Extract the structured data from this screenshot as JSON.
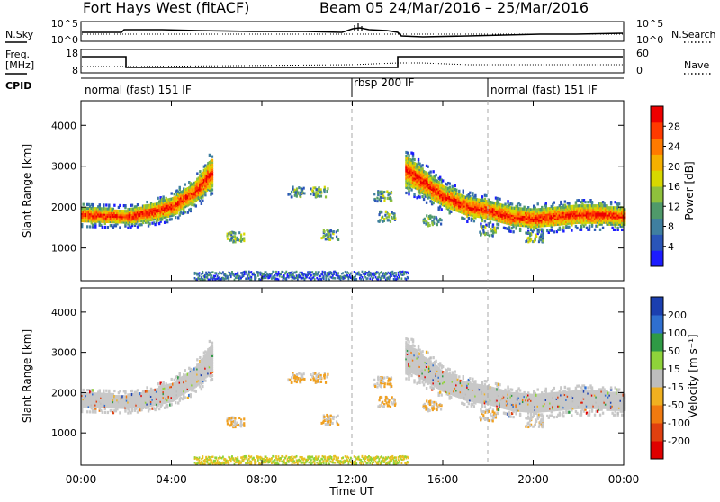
{
  "header": {
    "station": "Fort Hays West (fitACF)",
    "beam_dates": "Beam 05  24/Mar/2016 – 25/Mar/2016"
  },
  "left_labels": {
    "nsky": "N.Sky",
    "freq_line1": "Freq.",
    "freq_line2": "[MHz]",
    "cpid": "CPID"
  },
  "right_labels": {
    "nsearch": "N.Search",
    "nave": "Nave"
  },
  "noise_panel": {
    "left_ticks": [
      "10^5",
      "10^0"
    ],
    "right_ticks": [
      "10^5",
      "10^0"
    ]
  },
  "freq_panel": {
    "left_ticks": [
      "18",
      "8"
    ],
    "right_ticks": [
      "60",
      "0"
    ]
  },
  "cpid_segments": [
    {
      "label": "normal (fast) 151 IF",
      "start_hour": 0
    },
    {
      "label": "rbsp 200 IF",
      "start_hour": 12
    },
    {
      "label": "normal (fast) 151 IF",
      "start_hour": 18
    }
  ],
  "power_panel": {
    "ylabel": "Slant Range [km]",
    "yticks": [
      1000,
      2000,
      3000,
      4000
    ],
    "colorbar_label": "Power [dB]",
    "colorbar_ticks": [
      "4",
      "8",
      "12",
      "16",
      "20",
      "24",
      "28"
    ],
    "colorbar_colors": [
      "#1c1cff",
      "#2a55b8",
      "#3f7fa0",
      "#4f9a6a",
      "#8fc13c",
      "#d8d800",
      "#f5b000",
      "#ff7a00",
      "#ff3a00",
      "#ee0000"
    ]
  },
  "velocity_panel": {
    "ylabel": "Slant Range [km]",
    "yticks": [
      1000,
      2000,
      3000,
      4000
    ],
    "colorbar_label": "Velocity [m s⁻¹]",
    "colorbar_ticks": [
      "200",
      "100",
      "50",
      "15",
      "-15",
      "-50",
      "-100",
      "-200"
    ],
    "colorbar_colors": [
      "#1b3fb0",
      "#2f6fd0",
      "#2f9a45",
      "#8fd33a",
      "#bdbdbd",
      "#f0b020",
      "#f07a10",
      "#e04010",
      "#e00000"
    ]
  },
  "x_axis": {
    "tick_labels": [
      "00:00",
      "04:00",
      "08:00",
      "12:00",
      "16:00",
      "20:00",
      "00:00"
    ],
    "label": "Time UT"
  },
  "chart_data": {
    "type": "heatmap",
    "title": "Fort Hays West (fitACF)",
    "xlabel": "Time UT",
    "ylabel": "Slant Range [km]",
    "xlim_hours": [
      0,
      24
    ],
    "ylim_km": [
      200,
      4600
    ],
    "power_band": {
      "hours": [
        0,
        2,
        3,
        4,
        5,
        5.8,
        14.3,
        15,
        16,
        17,
        18,
        19,
        20,
        21,
        22,
        23,
        24
      ],
      "center_km": [
        1850,
        1800,
        1900,
        2050,
        2400,
        2900,
        2950,
        2700,
        2300,
        2050,
        1950,
        1800,
        1750,
        1800,
        1850,
        1850,
        1800
      ],
      "half_width_km": [
        180,
        170,
        200,
        220,
        250,
        350,
        350,
        300,
        250,
        230,
        230,
        230,
        230,
        230,
        230,
        230,
        200
      ]
    },
    "power_color_scale_dB": [
      4,
      8,
      12,
      16,
      20,
      24,
      28
    ],
    "velocity_color_scale_ms": [
      -200,
      -100,
      -50,
      -15,
      15,
      50,
      100,
      200
    ]
  }
}
